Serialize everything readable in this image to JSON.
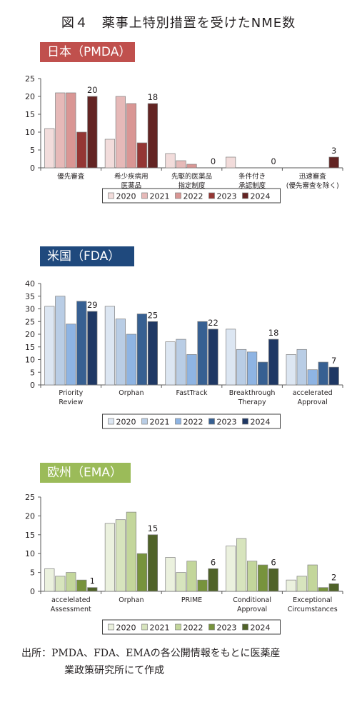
{
  "figure_title": "図４　薬事上特別措置を受けたNME数",
  "source": {
    "line1": "出所：PMDA、FDA、EMAの各公開情報をもとに医薬産",
    "line2": "業政策研究所にて作成"
  },
  "colors": {
    "axis": "#595959",
    "jp_label_bg": "#c0504d",
    "us_label_bg": "#1f497d",
    "eu_label_bg": "#9bbb59"
  },
  "chart_data": [
    {
      "id": "jp",
      "region_label": "日本（PMDA）",
      "type": "bar",
      "categories": [
        [
          "優先審査"
        ],
        [
          "希少疾病用",
          "医薬品"
        ],
        [
          "先駆的医薬品",
          "指定制度"
        ],
        [
          "条件付き",
          "承認制度"
        ],
        [
          "迅速審査",
          "(優先審査を除く)"
        ]
      ],
      "ylim": [
        0,
        25
      ],
      "yticks": [
        0,
        5,
        10,
        15,
        20,
        25
      ],
      "grid": false,
      "legend_position": "bottom",
      "series": [
        {
          "name": "2020",
          "color": "#f2dcdb",
          "values": [
            11,
            8,
            4,
            3,
            0
          ]
        },
        {
          "name": "2021",
          "color": "#e6b9b8",
          "values": [
            21,
            20,
            2,
            0,
            0
          ]
        },
        {
          "name": "2022",
          "color": "#d99694",
          "values": [
            21,
            18,
            1,
            0,
            0
          ]
        },
        {
          "name": "2023",
          "color": "#943634",
          "values": [
            10,
            7,
            0,
            0,
            0
          ]
        },
        {
          "name": "2024",
          "color": "#632423",
          "values": [
            20,
            18,
            0,
            0,
            3
          ]
        }
      ],
      "data_labels": [
        "20",
        "18",
        "0",
        "0",
        "3"
      ]
    },
    {
      "id": "us",
      "region_label": "米国（FDA）",
      "type": "bar",
      "categories": [
        [
          "Priority",
          "Review"
        ],
        [
          "Orphan"
        ],
        [
          "FastTrack"
        ],
        [
          "Breakthrough",
          "Therapy"
        ],
        [
          "accelerated",
          "Approval"
        ]
      ],
      "ylim": [
        0,
        40
      ],
      "yticks": [
        0,
        5,
        10,
        15,
        20,
        25,
        30,
        35,
        40
      ],
      "grid": false,
      "legend_position": "bottom",
      "series": [
        {
          "name": "2020",
          "color": "#dce6f2",
          "values": [
            31,
            31,
            17,
            22,
            12
          ]
        },
        {
          "name": "2021",
          "color": "#b9cde5",
          "values": [
            35,
            26,
            18,
            14,
            14
          ]
        },
        {
          "name": "2022",
          "color": "#8eb4e3",
          "values": [
            24,
            20,
            12,
            13,
            6
          ]
        },
        {
          "name": "2023",
          "color": "#376092",
          "values": [
            33,
            28,
            25,
            9,
            9
          ]
        },
        {
          "name": "2024",
          "color": "#1f3864",
          "values": [
            29,
            25,
            22,
            18,
            7
          ]
        }
      ],
      "data_labels": [
        "29",
        "25",
        "22",
        "18",
        "7"
      ]
    },
    {
      "id": "eu",
      "region_label": "欧州（EMA）",
      "type": "bar",
      "categories": [
        [
          "accelelated",
          "Assessment"
        ],
        [
          "Orphan"
        ],
        [
          "PRIME"
        ],
        [
          "Conditional",
          "Approval"
        ],
        [
          "Exceptional",
          "Circumstances"
        ]
      ],
      "ylim": [
        0,
        25
      ],
      "yticks": [
        0,
        5,
        10,
        15,
        20,
        25
      ],
      "grid": false,
      "legend_position": "bottom",
      "series": [
        {
          "name": "2020",
          "color": "#ebf1de",
          "values": [
            6,
            18,
            9,
            12,
            3
          ]
        },
        {
          "name": "2021",
          "color": "#d7e4bd",
          "values": [
            4,
            19,
            5,
            14,
            4
          ]
        },
        {
          "name": "2022",
          "color": "#c3d69b",
          "values": [
            5,
            21,
            8,
            8,
            7
          ]
        },
        {
          "name": "2023",
          "color": "#77933c",
          "values": [
            3,
            10,
            3,
            7,
            1
          ]
        },
        {
          "name": "2024",
          "color": "#4f6228",
          "values": [
            1,
            15,
            6,
            6,
            2
          ]
        }
      ],
      "data_labels": [
        "1",
        "15",
        "6",
        "6",
        "2"
      ]
    }
  ]
}
